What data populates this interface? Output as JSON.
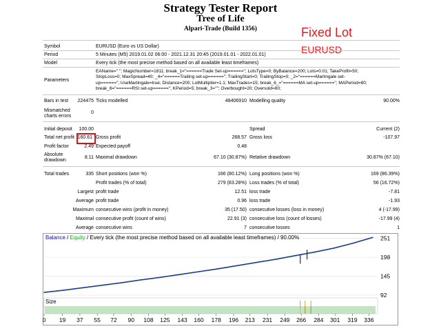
{
  "header": {
    "title": "Strategy Tester Report",
    "subtitle": "Tree of Life",
    "broker": "Alpari-Trade (Build 1356)"
  },
  "annotation": {
    "line1": "Fixed Lot",
    "line2": "EURUSD"
  },
  "info": {
    "symbol_label": "Symbol",
    "symbol_value": "EURUSD (Euro vs US Dollar)",
    "period_label": "Period",
    "period_value": "5 Minutes (M5) 2019.01.02 06:00 - 2021.12.31 20:45 (2019.01.01 - 2022.01.01)",
    "model_label": "Model",
    "model_value": "Every tick (the most precise method based on all available least timeframes)",
    "parameters_label": "Parameters",
    "parameters_lines": [
      "EAName=\" \"; MagicNumber=1811; break_1=\"======Trade Set-up======\"; LotsType=0; ByBalance=200; Lots=0.01; TakeProfit=50;",
      "StopLoss=0; MaxSpread=40; _4=\"======Trailing set-up======\"; TrailingStart=0; TrailingStop=0; _2=\"======Martingale set-",
      "up======\"; UseMartingale=true; Distance=200; LotMultiplier=1.1; MaxTrades=15; break_6_=\"======MA set-up======\"; MAPeriod=80;",
      "break_6=\"======RSI set-up======\"; KPeriod=5; break_3=\"\"; Overbought=20; Oversold=80;"
    ],
    "bars_label": "Bars in test",
    "bars_value": "224475",
    "ticks_label": "Ticks modelled",
    "ticks_value": "48406910",
    "quality_label": "Modelling quality",
    "quality_value": "90.00%",
    "mismatch_label_1": "Mismatched",
    "mismatch_label_2": "charts errors",
    "mismatch_value": "0"
  },
  "stats": {
    "initial_deposit_label": "Initial deposit",
    "initial_deposit_value": "100.00",
    "spread_label": "Spread",
    "spread_value": "Current (2)",
    "net_profit_label": "Total net profit",
    "net_profit_value": "160.61",
    "gross_profit_label": "Gross profit",
    "gross_profit_value": "268.57",
    "gross_loss_label": "Gross loss",
    "gross_loss_value": "-107.97",
    "profit_factor_label": "Profit factor",
    "profit_factor_value": "2.49",
    "expected_payoff_label": "Expected payoff",
    "expected_payoff_value": "0.48",
    "abs_dd_label_1": "Absolute",
    "abs_dd_label_2": "drawdown",
    "abs_dd_value": "8.11",
    "max_dd_label": "Maximal drawdown",
    "max_dd_value": "67.10 (30.87%)",
    "rel_dd_label": "Relative drawdown",
    "rel_dd_value": "30.87% (67.10)",
    "total_trades_label": "Total trades",
    "total_trades_value": "335",
    "short_label": "Short positions (won %)",
    "short_value": "166 (80.12%)",
    "long_label": "Long positions (won %)",
    "long_value": "169 (86.39%)",
    "profit_trades_label": "Profit trades (% of total)",
    "profit_trades_value": "279 (83.28%)",
    "loss_trades_label": "Loss trades (% of total)",
    "loss_trades_value": "56 (16.72%)",
    "largest_label": "Largest",
    "largest_profit_label": "profit trade",
    "largest_profit_value": "12.51",
    "largest_loss_label": "loss trade",
    "largest_loss_value": "-7.81",
    "average_label": "Average",
    "avg_profit_label": "profit trade",
    "avg_profit_value": "0.96",
    "avg_loss_label": "loss trade",
    "avg_loss_value": "-1.93",
    "maximum_label": "Maximum",
    "max_cons_wins_label": "consecutive wins (profit in money)",
    "max_cons_wins_value": "35 (17.50)",
    "max_cons_losses_label": "consecutive losses (loss in money)",
    "max_cons_losses_value": "4 (-17.99)",
    "maximal_label": "Maximal",
    "maximal_profit_label": "consecutive profit (count of wins)",
    "maximal_profit_value": "22.91 (3)",
    "maximal_loss_label": "consecutive loss (count of losses)",
    "maximal_loss_value": "-17.99 (4)",
    "average2_label": "Average",
    "avg_cons_wins_label": "consecutive wins",
    "avg_cons_wins_value": "7",
    "avg_cons_losses_label": "consecutive losses",
    "avg_cons_losses_value": "1"
  },
  "chart_data": {
    "type": "line",
    "legend_parts": [
      "Balance",
      " / ",
      "Equity",
      " / Every tick (the most precise method based on all available least timeframes) / 90.00%"
    ],
    "legend_colors": [
      "#1a1aa8",
      "#000000",
      "#2e9e2e",
      "#000000"
    ],
    "series": [
      {
        "name": "Balance",
        "color": "#1a1aa8"
      },
      {
        "name": "Equity",
        "color": "#2e9e2e"
      }
    ],
    "x": [
      0,
      20,
      40,
      60,
      80,
      100,
      120,
      140,
      160,
      180,
      200,
      220,
      240,
      260,
      280,
      300,
      320,
      340
    ],
    "y": [
      100,
      106,
      113,
      120,
      127,
      135,
      142,
      150,
      158,
      166,
      175,
      184,
      193,
      203,
      213,
      224,
      238,
      254
    ],
    "drawdowns": [
      {
        "x": 265,
        "y": 180
      },
      {
        "x": 272,
        "y": 192
      }
    ],
    "y_ticks": [
      "251",
      "198",
      "145",
      "92"
    ],
    "y_tick_values": [
      251,
      198,
      145,
      92
    ],
    "x_ticks": [
      "0",
      "19",
      "37",
      "55",
      "72",
      "90",
      "108",
      "125",
      "143",
      "160",
      "178",
      "196",
      "213",
      "231",
      "249",
      "266",
      "284",
      "301",
      "319",
      "336"
    ],
    "ylim": [
      92,
      262
    ],
    "xlim": [
      0,
      345
    ],
    "size_label": "Size",
    "accent_colors": {
      "bar_grid": "#7dbf7d",
      "lot_spike": "#c9a233"
    }
  }
}
